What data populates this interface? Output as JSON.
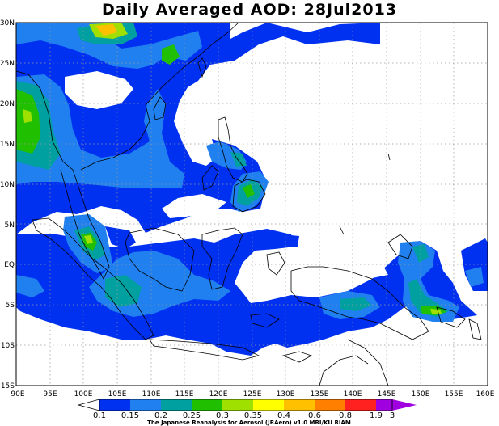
{
  "title": "Daily Averaged AOD: 28Jul2013",
  "lat_labels": [
    "30N",
    "25N",
    "20N",
    "15N",
    "10N",
    "5N",
    "EQ",
    "5S",
    "10S",
    "15S"
  ],
  "lon_labels": [
    "90E",
    "95E",
    "100E",
    "105E",
    "110E",
    "115E",
    "120E",
    "125E",
    "130E",
    "135E",
    "140E",
    "145E",
    "150E",
    "155E",
    "160E"
  ],
  "map_extent": {
    "lon_min": 90,
    "lon_max": 160,
    "lat_min": -15,
    "lat_max": 30
  },
  "colorbar": {
    "labels": [
      "0.1",
      "0.15",
      "0.2",
      "0.25",
      "0.3",
      "0.35",
      "0.4",
      "0.6",
      "0.8",
      "1.9",
      "3"
    ],
    "colors": [
      "#ffffff",
      "#0030f0",
      "#2080f0",
      "#00a0a0",
      "#20c000",
      "#a0e000",
      "#ffff00",
      "#ffc000",
      "#ff8000",
      "#ff2020",
      "#a000e0"
    ]
  },
  "credit": "The Japanese Reanalysis for Aerosol (JRAero) v1.0 MRI/KU RIAM"
}
